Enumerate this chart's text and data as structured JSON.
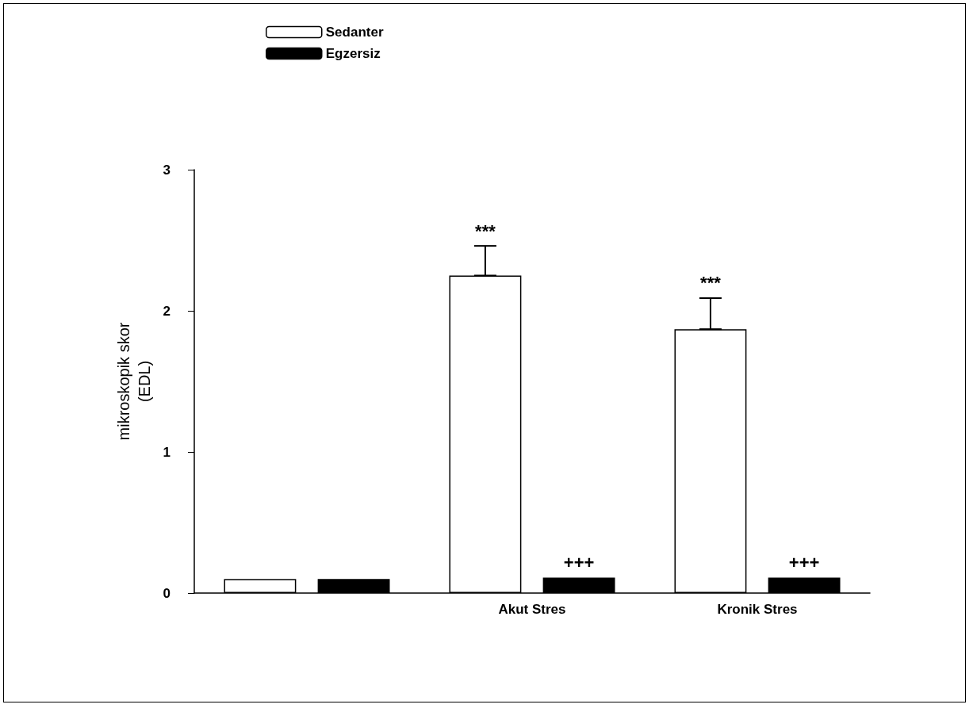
{
  "chart_data": {
    "type": "bar",
    "ylabel": "mikroskopik skor (EDL)",
    "categories": [
      null,
      "Akut Stres",
      "Kronik Stres"
    ],
    "series": [
      {
        "name": "Sedanter",
        "color": "#ffffff",
        "values": [
          0.1,
          2.25,
          1.87
        ],
        "value_labels": [
          null,
          "***",
          "***"
        ],
        "errors": [
          null,
          [
            2.25,
            2.46
          ],
          [
            1.87,
            2.09
          ]
        ]
      },
      {
        "name": "Egzersiz",
        "color": "#000000",
        "values": [
          0.1,
          0.11,
          0.11
        ],
        "value_labels": [
          null,
          "+++",
          "+++"
        ]
      }
    ],
    "ylim": [
      0,
      3
    ],
    "yticks": [
      0,
      1,
      2,
      3
    ],
    "grid": false,
    "legend": "top left"
  }
}
